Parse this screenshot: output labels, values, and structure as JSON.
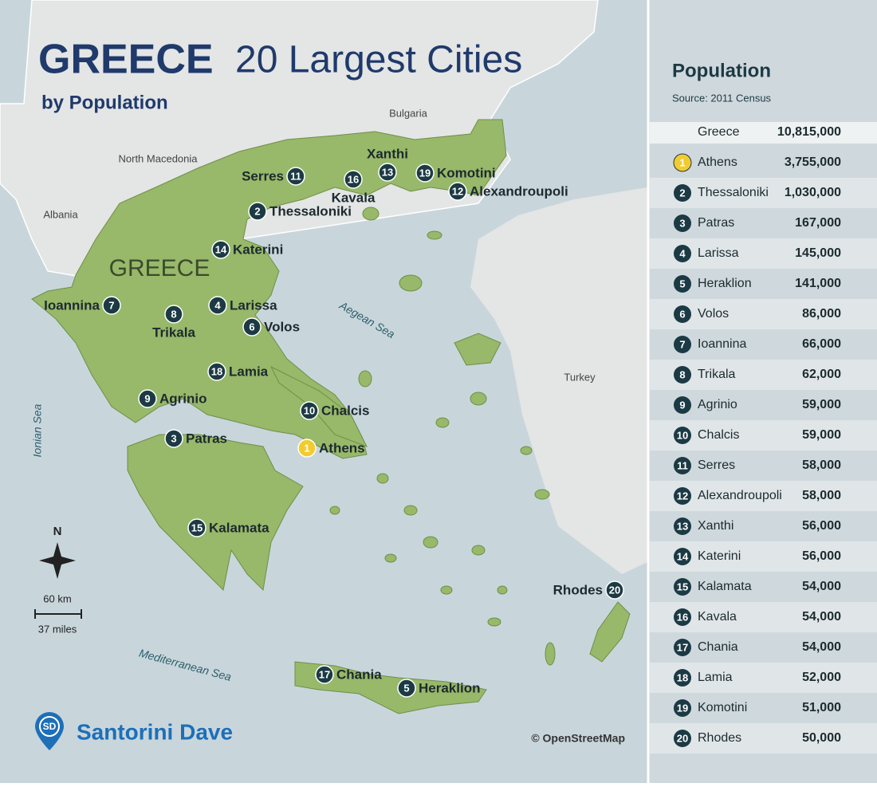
{
  "title": {
    "main": "GREECE",
    "rest": "20 Largest Cities",
    "subtitle": "by Population"
  },
  "map": {
    "countries": [
      "Bulgaria",
      "North Macedonia",
      "Albania",
      "Turkey"
    ],
    "country_label": "GREECE",
    "seas": [
      "Aegean Sea",
      "Ionian Sea",
      "Mediterranean Sea"
    ],
    "compass": "N",
    "scale": {
      "km": "60 km",
      "miles": "37 miles"
    },
    "attribution": "© OpenStreetMap"
  },
  "brand": {
    "logo": "SD",
    "name": "Santorini Dave"
  },
  "table": {
    "title": "Population",
    "source": "Source: 2011 Census",
    "total": {
      "name": "Greece",
      "population": "10,815,000"
    },
    "rows": [
      {
        "rank": 1,
        "city": "Athens",
        "population": "3,755,000"
      },
      {
        "rank": 2,
        "city": "Thessaloniki",
        "population": "1,030,000"
      },
      {
        "rank": 3,
        "city": "Patras",
        "population": "167,000"
      },
      {
        "rank": 4,
        "city": "Larissa",
        "population": "145,000"
      },
      {
        "rank": 5,
        "city": "Heraklion",
        "population": "141,000"
      },
      {
        "rank": 6,
        "city": "Volos",
        "population": "86,000"
      },
      {
        "rank": 7,
        "city": "Ioannina",
        "population": "66,000"
      },
      {
        "rank": 8,
        "city": "Trikala",
        "population": "62,000"
      },
      {
        "rank": 9,
        "city": "Agrinio",
        "population": "59,000"
      },
      {
        "rank": 10,
        "city": "Chalcis",
        "population": "59,000"
      },
      {
        "rank": 11,
        "city": "Serres",
        "population": "58,000"
      },
      {
        "rank": 12,
        "city": "Alexandroupoli",
        "population": "58,000"
      },
      {
        "rank": 13,
        "city": "Xanthi",
        "population": "56,000"
      },
      {
        "rank": 14,
        "city": "Katerini",
        "population": "56,000"
      },
      {
        "rank": 15,
        "city": "Kalamata",
        "population": "54,000"
      },
      {
        "rank": 16,
        "city": "Kavala",
        "population": "54,000"
      },
      {
        "rank": 17,
        "city": "Chania",
        "population": "54,000"
      },
      {
        "rank": 18,
        "city": "Lamia",
        "population": "52,000"
      },
      {
        "rank": 19,
        "city": "Komotini",
        "population": "51,000"
      },
      {
        "rank": 20,
        "city": "Rhodes",
        "population": "50,000"
      }
    ]
  }
}
